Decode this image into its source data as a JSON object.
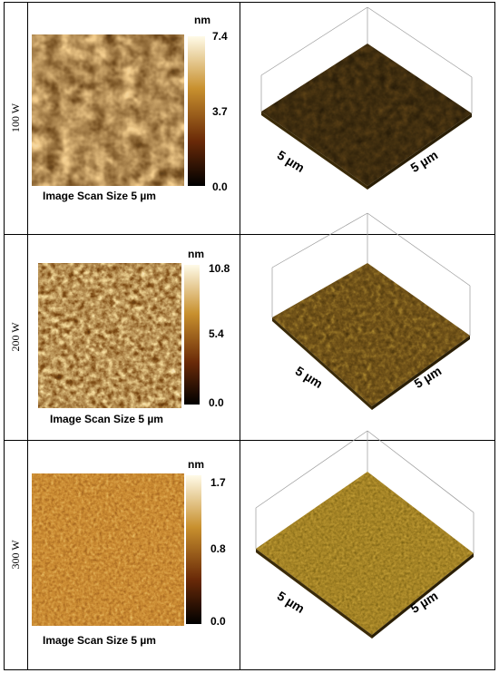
{
  "rows": [
    {
      "label": "100 W",
      "unit": "nm",
      "scale": [
        "7.4",
        "3.7",
        "0.0"
      ],
      "caption": "Image Scan Size 5 µm",
      "axis_labels": [
        "5 µm",
        "5 µm"
      ]
    },
    {
      "label": "200 W",
      "unit": "nm",
      "scale": [
        "10.8",
        "5.4",
        "0.0"
      ],
      "caption": "Image Scan Size 5 µm",
      "axis_labels": [
        "5 µm",
        "5 µm"
      ]
    },
    {
      "label": "300 W",
      "unit": "nm",
      "scale": [
        "1.7",
        "0.8",
        "0.0"
      ],
      "caption": "Image Scan Size 5 µm",
      "axis_labels": [
        "5 µm",
        "5 µm"
      ]
    }
  ]
}
